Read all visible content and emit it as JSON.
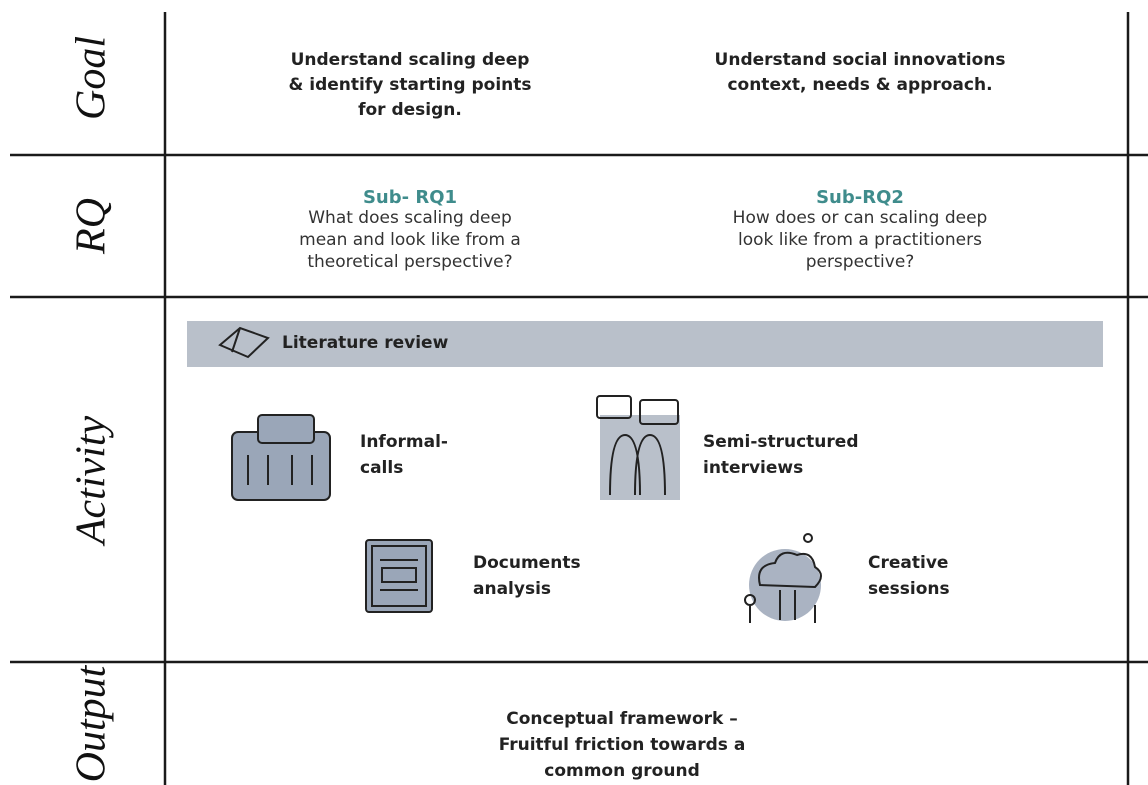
{
  "goal": {
    "label": "Goal",
    "items": [
      {
        "lines": [
          "Understand scaling deep",
          "& identify starting points",
          "for design."
        ]
      },
      {
        "lines": [
          "Understand social innovations",
          "context, needs & approach."
        ]
      }
    ]
  },
  "rq": {
    "label": "RQ",
    "items": [
      {
        "heading": "Sub- RQ1",
        "lines": [
          "What does scaling deep",
          "mean and look like from a",
          "theoretical perspective?"
        ]
      },
      {
        "heading": "Sub-RQ2",
        "lines": [
          "How does or can scaling deep",
          "look like from a practitioners",
          "perspective?"
        ]
      }
    ]
  },
  "activity": {
    "label": "Activity",
    "banner": "Literature review",
    "items": [
      {
        "lines": [
          "Informal-",
          "calls"
        ]
      },
      {
        "lines": [
          "Semi-structured",
          "interviews"
        ]
      },
      {
        "lines": [
          "Documents",
          "analysis"
        ]
      },
      {
        "lines": [
          "Creative",
          "sessions"
        ]
      }
    ]
  },
  "output": {
    "label": "Output",
    "lines": [
      "Conceptual framework –",
      "Fruitful friction towards a",
      "common ground"
    ]
  }
}
